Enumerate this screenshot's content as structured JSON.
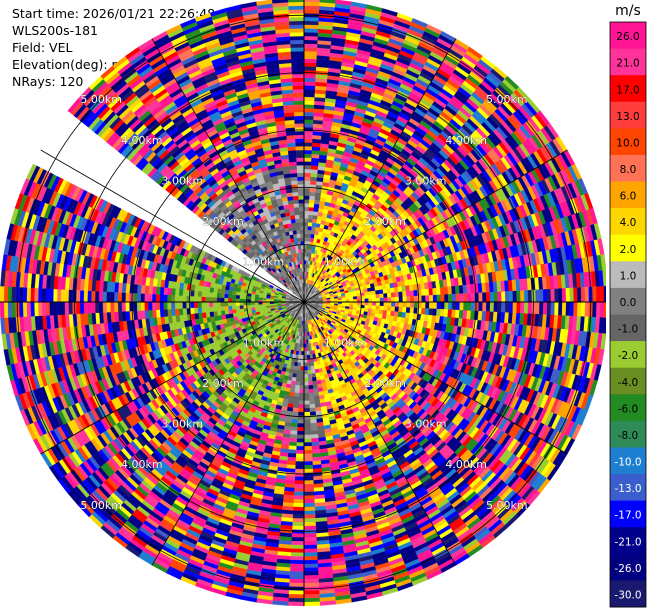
{
  "header": {
    "start_time": "Start time: 2026/01/21 22:26:48",
    "device": "WLS200s-181",
    "field": "Field: VEL",
    "elevation": "Elevation(deg): nan",
    "nrays": "NRays: 120"
  },
  "chart_data": {
    "type": "heatmap",
    "subtype": "polar-ppi",
    "field": "VEL",
    "units": "m/s",
    "ring_labels": [
      "1.00km",
      "2.00km",
      "3.00km",
      "4.00km",
      "5.00km"
    ],
    "range_km": [
      0,
      5.3
    ],
    "nrays": 120,
    "missing_sector_deg": [
      -62,
      -52
    ],
    "colorbar": {
      "label": "m/s",
      "ticks": [
        "26.0",
        "21.0",
        "17.0",
        "13.0",
        "10.0",
        "8.0",
        "6.0",
        "4.0",
        "2.0",
        "1.0",
        "0.0",
        "-1.0",
        "-2.0",
        "-4.0",
        "-6.0",
        "-8.0",
        "-10.0",
        "-13.0",
        "-17.0",
        "-21.0",
        "-26.0",
        "-30.0"
      ],
      "colors": [
        "#ff1493",
        "#ff3399",
        "#ff0000",
        "#ff3d3d",
        "#ff4500",
        "#ff7256",
        "#ffa500",
        "#ffd700",
        "#ffff00",
        "#bbbbbb",
        "#808080",
        "#666666",
        "#9acd32",
        "#6b8e23",
        "#228b22",
        "#2e8b57",
        "#1e7fd0",
        "#3a5fcd",
        "#0000ff",
        "#00008b",
        "#000080",
        "#191970"
      ]
    },
    "near_field_signal": {
      "positive_sector": "east",
      "negative_sector": "west"
    }
  }
}
